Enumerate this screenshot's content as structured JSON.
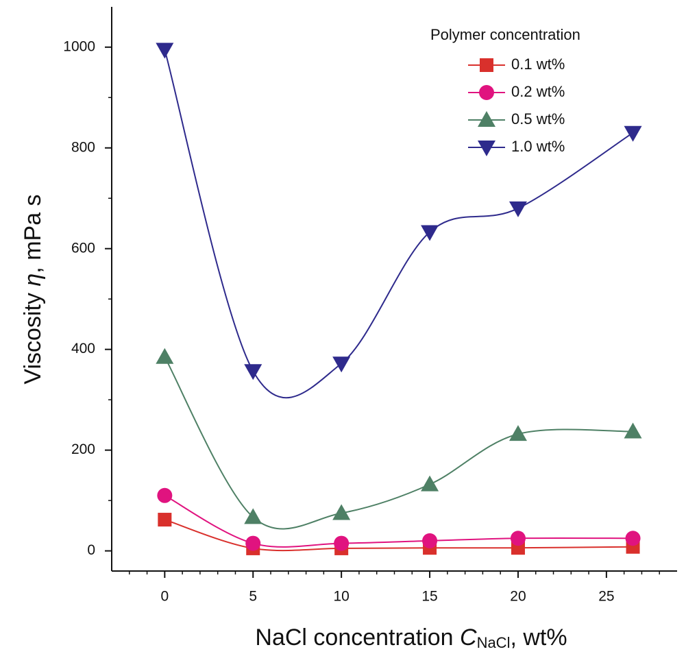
{
  "chart_data": {
    "type": "line",
    "x_label": {
      "prefix": "NaCl concentration ",
      "symbol": "C",
      "subscript": "NaCl",
      "suffix": ", wt%"
    },
    "y_label": {
      "prefix": "Viscosity ",
      "symbol": "η",
      "suffix": ", mPa s"
    },
    "legend_title": "Polymer concentration",
    "legend": "upper right",
    "x": [
      0,
      5,
      10,
      15,
      20,
      26.5
    ],
    "series": [
      {
        "name": "0.1 wt%",
        "color": "#d9302c",
        "marker": "square",
        "values": [
          62,
          5,
          5,
          6,
          6,
          8
        ]
      },
      {
        "name": "0.2 wt%",
        "color": "#e0137f",
        "marker": "circle",
        "values": [
          110,
          15,
          15,
          20,
          25,
          25
        ]
      },
      {
        "name": "0.5 wt%",
        "color": "#4e8065",
        "marker": "triangle-up",
        "values": [
          385,
          67,
          75,
          132,
          232,
          237
        ]
      },
      {
        "name": "1.0 wt%",
        "color": "#2e2a8c",
        "marker": "triangle-down",
        "values": [
          995,
          357,
          372,
          633,
          680,
          830
        ]
      }
    ],
    "xlim": [
      -3,
      29
    ],
    "xticks": [
      0,
      5,
      10,
      15,
      20,
      25
    ],
    "xminorticks": [
      -2,
      -1,
      1,
      2,
      3,
      4,
      6,
      7,
      8,
      9,
      11,
      12,
      13,
      14,
      16,
      17,
      18,
      19,
      21,
      22,
      23,
      24,
      26,
      27,
      28
    ],
    "ylim": [
      -40,
      1080
    ],
    "yticks": [
      0,
      200,
      400,
      600,
      800,
      1000
    ],
    "yminorticks": [
      100,
      300,
      500,
      700,
      900
    ]
  }
}
